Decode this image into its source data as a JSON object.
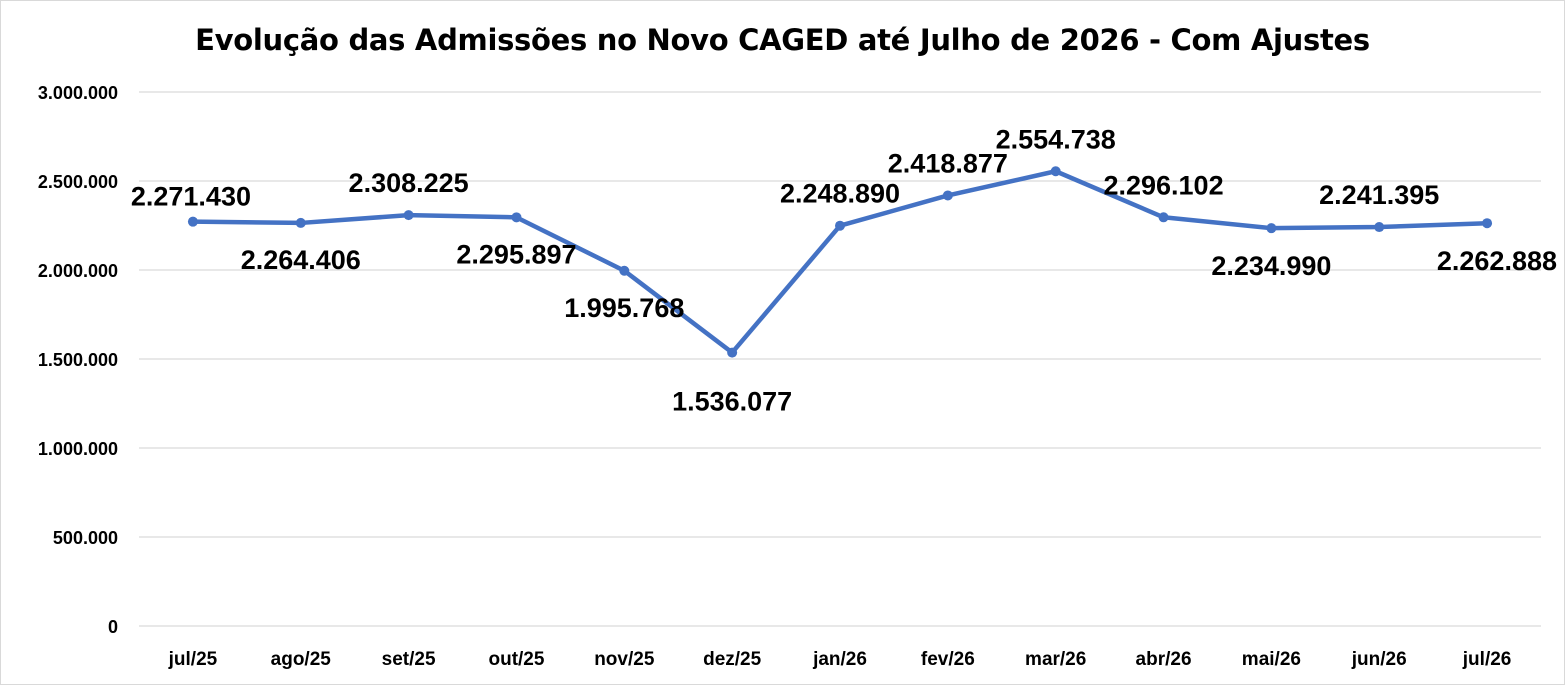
{
  "chart_data": {
    "type": "line",
    "title": "Evolução das Admissões no Novo CAGED até Julho de 2026 - Com Ajustes",
    "categories": [
      "jul/25",
      "ago/25",
      "set/25",
      "out/25",
      "nov/25",
      "dez/25",
      "jan/26",
      "fev/26",
      "mar/26",
      "abr/26",
      "mai/26",
      "jun/26",
      "jul/26"
    ],
    "series": [
      {
        "values": [
          2271430,
          2264406,
          2308225,
          2295897,
          1995768,
          1536077,
          2248890,
          2418877,
          2554738,
          2296102,
          2234990,
          2241395,
          2262888
        ],
        "data_labels": [
          "2.271.430",
          "2.264.406",
          "2.308.225",
          "2.295.897",
          "1.995.768",
          "1.536.077",
          "2.248.890",
          "2.418.877",
          "2.554.738",
          "2.296.102",
          "2.234.990",
          "2.241.395",
          "2.262.888"
        ],
        "color": "#4472c4"
      }
    ],
    "ylim": [
      0,
      3000000
    ],
    "y_ticks": [
      0,
      500000,
      1000000,
      1500000,
      2000000,
      2500000,
      3000000
    ],
    "y_tick_labels": [
      "0",
      "500.000",
      "1.000.000",
      "1.500.000",
      "2.000.000",
      "2.500.000",
      "3.000.000"
    ],
    "xlabel": "",
    "ylabel": "",
    "grid": true,
    "legend": "none",
    "gridline_color": "#d9d9d9"
  }
}
